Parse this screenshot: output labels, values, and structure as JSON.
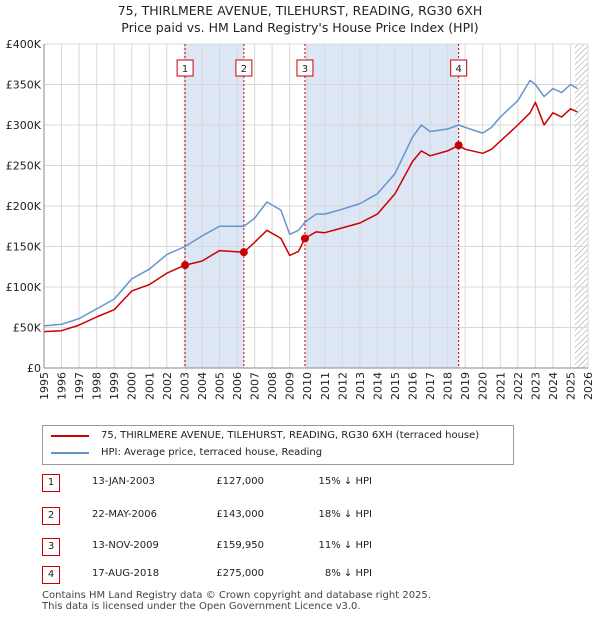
{
  "title_line1": "75, THIRLMERE AVENUE, TILEHURST, READING, RG30 6XH",
  "title_line2": "Price paid vs. HM Land Registry's House Price Index (HPI)",
  "colors": {
    "price": "#cc0000",
    "hpi": "#6495cd",
    "shade": "#dde6f5",
    "grid": "#d8d8d8"
  },
  "chart_data": {
    "type": "line",
    "title": "75, THIRLMERE AVENUE, TILEHURST, READING, RG30 6XH — Price paid vs. HM Land Registry's House Price Index (HPI)",
    "xlim": [
      1995,
      2026
    ],
    "ylim": [
      0,
      400000
    ],
    "yticks": [
      0,
      50000,
      100000,
      150000,
      200000,
      250000,
      300000,
      350000,
      400000
    ],
    "ytick_labels": [
      "£0",
      "£50K",
      "£100K",
      "£150K",
      "£200K",
      "£250K",
      "£300K",
      "£350K",
      "£400K"
    ],
    "xticks": [
      "1995",
      "1996",
      "1997",
      "1998",
      "1999",
      "2000",
      "2001",
      "2002",
      "2003",
      "2004",
      "2005",
      "2006",
      "2007",
      "2008",
      "2009",
      "2010",
      "2011",
      "2012",
      "2013",
      "2014",
      "2015",
      "2016",
      "2017",
      "2018",
      "2019",
      "2020",
      "2021",
      "2022",
      "2023",
      "2024",
      "2025",
      "2026"
    ],
    "hatch_from": 2025.25,
    "series": [
      {
        "name": "75, THIRLMERE AVENUE, TILEHURST, READING, RG30 6XH (terraced house)",
        "x": [
          1995.0,
          1996.0,
          1997.0,
          1998.0,
          1999.0,
          2000.0,
          2001.0,
          2002.0,
          2003.04,
          2004.0,
          2005.0,
          2006.39,
          2007.0,
          2007.7,
          2008.5,
          2009.0,
          2009.5,
          2009.87,
          2010.5,
          2011.0,
          2012.0,
          2013.0,
          2014.0,
          2015.0,
          2016.0,
          2016.5,
          2017.0,
          2018.0,
          2018.63,
          2019.0,
          2020.0,
          2020.5,
          2021.0,
          2022.0,
          2022.7,
          2023.0,
          2023.5,
          2024.0,
          2024.5,
          2025.0,
          2025.4
        ],
        "y": [
          45000,
          46000,
          53000,
          63000,
          72000,
          95000,
          103000,
          117000,
          127000,
          132000,
          145000,
          143000,
          155000,
          170000,
          160000,
          139000,
          144000,
          159950,
          168000,
          167000,
          173000,
          179000,
          190000,
          215000,
          255000,
          268000,
          262000,
          268000,
          275000,
          270000,
          265000,
          270000,
          280000,
          300000,
          315000,
          328000,
          300000,
          315000,
          310000,
          320000,
          316000
        ]
      },
      {
        "name": "HPI: Average price, terraced house, Reading",
        "x": [
          1995.0,
          1996.0,
          1997.0,
          1998.0,
          1999.0,
          2000.0,
          2001.0,
          2002.0,
          2003.04,
          2004.0,
          2005.0,
          2006.39,
          2007.0,
          2007.7,
          2008.5,
          2009.0,
          2009.5,
          2009.87,
          2010.5,
          2011.0,
          2012.0,
          2013.0,
          2014.0,
          2015.0,
          2016.0,
          2016.5,
          2017.0,
          2018.0,
          2018.63,
          2019.0,
          2020.0,
          2020.5,
          2021.0,
          2022.0,
          2022.7,
          2023.0,
          2023.5,
          2024.0,
          2024.5,
          2025.0,
          2025.4
        ],
        "y": [
          52000,
          54000,
          61000,
          73000,
          85000,
          110000,
          122000,
          140000,
          150000,
          163000,
          175000,
          175000,
          185000,
          205000,
          195000,
          165000,
          170000,
          180000,
          190000,
          190000,
          196000,
          203000,
          215000,
          240000,
          285000,
          300000,
          292000,
          295000,
          300000,
          297000,
          290000,
          297000,
          310000,
          330000,
          355000,
          350000,
          335000,
          345000,
          340000,
          350000,
          345000
        ]
      }
    ],
    "sales": [
      {
        "label": "1",
        "x": 2003.04,
        "y": 127000
      },
      {
        "label": "2",
        "x": 2006.39,
        "y": 143000
      },
      {
        "label": "3",
        "x": 2009.87,
        "y": 159950
      },
      {
        "label": "4",
        "x": 2018.63,
        "y": 275000
      }
    ]
  },
  "legend": {
    "price_label": "75, THIRLMERE AVENUE, TILEHURST, READING, RG30 6XH (terraced house)",
    "hpi_label": "HPI: Average price, terraced house, Reading"
  },
  "transactions": [
    {
      "num": "1",
      "date": "13-JAN-2003",
      "price": "£127,000",
      "delta": "15% ↓ HPI"
    },
    {
      "num": "2",
      "date": "22-MAY-2006",
      "price": "£143,000",
      "delta": "18% ↓ HPI"
    },
    {
      "num": "3",
      "date": "13-NOV-2009",
      "price": "£159,950",
      "delta": "11% ↓ HPI"
    },
    {
      "num": "4",
      "date": "17-AUG-2018",
      "price": "£275,000",
      "delta": "8% ↓ HPI"
    }
  ],
  "footer": {
    "line1": "Contains HM Land Registry data © Crown copyright and database right 2025.",
    "line2": "This data is licensed under the Open Government Licence v3.0."
  }
}
